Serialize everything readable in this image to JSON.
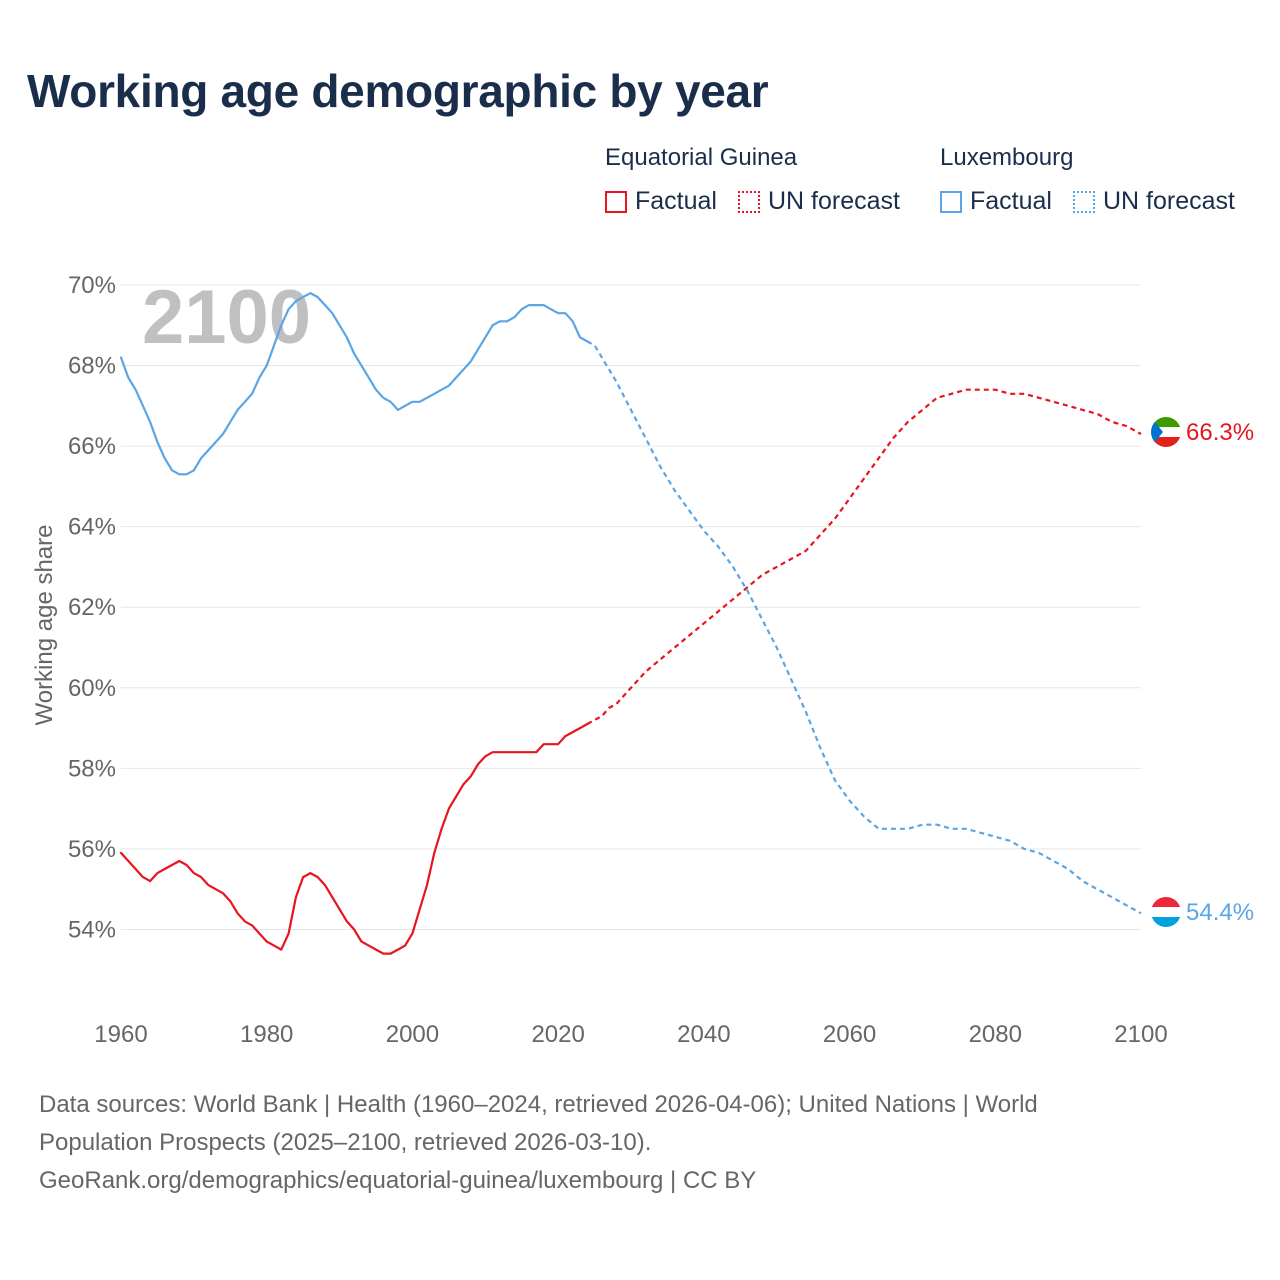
{
  "title": "Working age demographic by year",
  "legend": {
    "groups": [
      {
        "country": "Equatorial Guinea",
        "factual_label": "Factual",
        "forecast_label": "UN forecast",
        "color": "#e8141e"
      },
      {
        "country": "Luxembourg",
        "factual_label": "Factual",
        "forecast_label": "UN forecast",
        "color": "#5aa5e6"
      }
    ]
  },
  "footer": {
    "line1": "Data sources: World Bank | Health (1960–2024, retrieved 2026-04-06); United Nations | World",
    "line2": "Population Prospects (2025–2100, retrieved 2026-03-10).",
    "line3": "GeoRank.org/demographics/equatorial-guinea/luxembourg | CC BY"
  },
  "chart_data": {
    "type": "line",
    "title": "Working age demographic by year",
    "year_watermark": "2100",
    "xlabel": "",
    "ylabel": "Working age share",
    "xlim": [
      1960,
      2100
    ],
    "ylim": [
      52,
      70
    ],
    "x_ticks": [
      "1960",
      "1980",
      "2000",
      "2020",
      "2040",
      "2060",
      "2080",
      "2100"
    ],
    "y_ticks": [
      "54%",
      "56%",
      "58%",
      "60%",
      "62%",
      "64%",
      "66%",
      "68%",
      "70%"
    ],
    "grid": true,
    "forecast_start": 2024,
    "series": [
      {
        "name": "Equatorial Guinea",
        "color": "#e8141e",
        "end_label": "66.3%",
        "points": [
          [
            1960,
            55.9
          ],
          [
            1962,
            55.5
          ],
          [
            1963,
            55.3
          ],
          [
            1964,
            55.2
          ],
          [
            1965,
            55.4
          ],
          [
            1966,
            55.5
          ],
          [
            1967,
            55.6
          ],
          [
            1968,
            55.7
          ],
          [
            1969,
            55.6
          ],
          [
            1970,
            55.4
          ],
          [
            1971,
            55.3
          ],
          [
            1972,
            55.1
          ],
          [
            1973,
            55.0
          ],
          [
            1974,
            54.9
          ],
          [
            1975,
            54.7
          ],
          [
            1976,
            54.4
          ],
          [
            1977,
            54.2
          ],
          [
            1978,
            54.1
          ],
          [
            1979,
            53.9
          ],
          [
            1980,
            53.7
          ],
          [
            1981,
            53.6
          ],
          [
            1982,
            53.5
          ],
          [
            1983,
            53.9
          ],
          [
            1984,
            54.8
          ],
          [
            1985,
            55.3
          ],
          [
            1986,
            55.4
          ],
          [
            1987,
            55.3
          ],
          [
            1988,
            55.1
          ],
          [
            1989,
            54.8
          ],
          [
            1990,
            54.5
          ],
          [
            1991,
            54.2
          ],
          [
            1992,
            54.0
          ],
          [
            1993,
            53.7
          ],
          [
            1994,
            53.6
          ],
          [
            1995,
            53.5
          ],
          [
            1996,
            53.4
          ],
          [
            1997,
            53.4
          ],
          [
            1998,
            53.5
          ],
          [
            1999,
            53.6
          ],
          [
            2000,
            53.9
          ],
          [
            2001,
            54.5
          ],
          [
            2002,
            55.1
          ],
          [
            2003,
            55.9
          ],
          [
            2004,
            56.5
          ],
          [
            2005,
            57.0
          ],
          [
            2006,
            57.3
          ],
          [
            2007,
            57.6
          ],
          [
            2008,
            57.8
          ],
          [
            2009,
            58.1
          ],
          [
            2010,
            58.3
          ],
          [
            2011,
            58.4
          ],
          [
            2012,
            58.4
          ],
          [
            2013,
            58.4
          ],
          [
            2014,
            58.4
          ],
          [
            2015,
            58.4
          ],
          [
            2016,
            58.4
          ],
          [
            2017,
            58.4
          ],
          [
            2018,
            58.6
          ],
          [
            2019,
            58.6
          ],
          [
            2020,
            58.6
          ],
          [
            2021,
            58.8
          ],
          [
            2022,
            58.9
          ],
          [
            2023,
            59.0
          ],
          [
            2024,
            59.1
          ],
          [
            2025,
            59.2
          ],
          [
            2026,
            59.3
          ],
          [
            2027,
            59.5
          ],
          [
            2028,
            59.6
          ],
          [
            2030,
            60.0
          ],
          [
            2032,
            60.4
          ],
          [
            2034,
            60.7
          ],
          [
            2036,
            61.0
          ],
          [
            2038,
            61.3
          ],
          [
            2040,
            61.6
          ],
          [
            2042,
            61.9
          ],
          [
            2044,
            62.2
          ],
          [
            2046,
            62.5
          ],
          [
            2048,
            62.8
          ],
          [
            2050,
            63.0
          ],
          [
            2052,
            63.2
          ],
          [
            2054,
            63.4
          ],
          [
            2056,
            63.8
          ],
          [
            2058,
            64.2
          ],
          [
            2060,
            64.7
          ],
          [
            2062,
            65.2
          ],
          [
            2064,
            65.7
          ],
          [
            2066,
            66.2
          ],
          [
            2068,
            66.6
          ],
          [
            2070,
            66.9
          ],
          [
            2072,
            67.2
          ],
          [
            2074,
            67.3
          ],
          [
            2076,
            67.4
          ],
          [
            2078,
            67.4
          ],
          [
            2080,
            67.4
          ],
          [
            2082,
            67.3
          ],
          [
            2084,
            67.3
          ],
          [
            2086,
            67.2
          ],
          [
            2088,
            67.1
          ],
          [
            2090,
            67.0
          ],
          [
            2092,
            66.9
          ],
          [
            2094,
            66.8
          ],
          [
            2096,
            66.6
          ],
          [
            2098,
            66.5
          ],
          [
            2100,
            66.3
          ]
        ]
      },
      {
        "name": "Luxembourg",
        "color": "#5aa5e6",
        "end_label": "54.4%",
        "points": [
          [
            1960,
            68.2
          ],
          [
            1961,
            67.7
          ],
          [
            1962,
            67.4
          ],
          [
            1963,
            67.0
          ],
          [
            1964,
            66.6
          ],
          [
            1965,
            66.1
          ],
          [
            1966,
            65.7
          ],
          [
            1967,
            65.4
          ],
          [
            1968,
            65.3
          ],
          [
            1969,
            65.3
          ],
          [
            1970,
            65.4
          ],
          [
            1971,
            65.7
          ],
          [
            1972,
            65.9
          ],
          [
            1973,
            66.1
          ],
          [
            1974,
            66.3
          ],
          [
            1975,
            66.6
          ],
          [
            1976,
            66.9
          ],
          [
            1977,
            67.1
          ],
          [
            1978,
            67.3
          ],
          [
            1979,
            67.7
          ],
          [
            1980,
            68.0
          ],
          [
            1981,
            68.5
          ],
          [
            1982,
            69.0
          ],
          [
            1983,
            69.4
          ],
          [
            1984,
            69.6
          ],
          [
            1985,
            69.7
          ],
          [
            1986,
            69.8
          ],
          [
            1987,
            69.7
          ],
          [
            1988,
            69.5
          ],
          [
            1989,
            69.3
          ],
          [
            1990,
            69.0
          ],
          [
            1991,
            68.7
          ],
          [
            1992,
            68.3
          ],
          [
            1993,
            68.0
          ],
          [
            1994,
            67.7
          ],
          [
            1995,
            67.4
          ],
          [
            1996,
            67.2
          ],
          [
            1997,
            67.1
          ],
          [
            1998,
            66.9
          ],
          [
            1999,
            67.0
          ],
          [
            2000,
            67.1
          ],
          [
            2001,
            67.1
          ],
          [
            2002,
            67.2
          ],
          [
            2003,
            67.3
          ],
          [
            2004,
            67.4
          ],
          [
            2005,
            67.5
          ],
          [
            2006,
            67.7
          ],
          [
            2007,
            67.9
          ],
          [
            2008,
            68.1
          ],
          [
            2009,
            68.4
          ],
          [
            2010,
            68.7
          ],
          [
            2011,
            69.0
          ],
          [
            2012,
            69.1
          ],
          [
            2013,
            69.1
          ],
          [
            2014,
            69.2
          ],
          [
            2015,
            69.4
          ],
          [
            2016,
            69.5
          ],
          [
            2017,
            69.5
          ],
          [
            2018,
            69.5
          ],
          [
            2019,
            69.4
          ],
          [
            2020,
            69.3
          ],
          [
            2021,
            69.3
          ],
          [
            2022,
            69.1
          ],
          [
            2023,
            68.7
          ],
          [
            2024,
            68.6
          ],
          [
            2025,
            68.5
          ],
          [
            2026,
            68.2
          ],
          [
            2027,
            67.9
          ],
          [
            2028,
            67.6
          ],
          [
            2030,
            66.9
          ],
          [
            2032,
            66.2
          ],
          [
            2034,
            65.5
          ],
          [
            2036,
            64.9
          ],
          [
            2038,
            64.4
          ],
          [
            2040,
            63.9
          ],
          [
            2042,
            63.5
          ],
          [
            2044,
            63.0
          ],
          [
            2046,
            62.4
          ],
          [
            2048,
            61.7
          ],
          [
            2050,
            61.0
          ],
          [
            2052,
            60.2
          ],
          [
            2054,
            59.4
          ],
          [
            2056,
            58.5
          ],
          [
            2058,
            57.7
          ],
          [
            2060,
            57.2
          ],
          [
            2062,
            56.8
          ],
          [
            2064,
            56.5
          ],
          [
            2066,
            56.5
          ],
          [
            2068,
            56.5
          ],
          [
            2070,
            56.6
          ],
          [
            2072,
            56.6
          ],
          [
            2074,
            56.5
          ],
          [
            2076,
            56.5
          ],
          [
            2078,
            56.4
          ],
          [
            2080,
            56.3
          ],
          [
            2082,
            56.2
          ],
          [
            2084,
            56.0
          ],
          [
            2086,
            55.9
          ],
          [
            2088,
            55.7
          ],
          [
            2090,
            55.5
          ],
          [
            2092,
            55.2
          ],
          [
            2094,
            55.0
          ],
          [
            2096,
            54.8
          ],
          [
            2098,
            54.6
          ],
          [
            2100,
            54.4
          ]
        ]
      }
    ]
  }
}
